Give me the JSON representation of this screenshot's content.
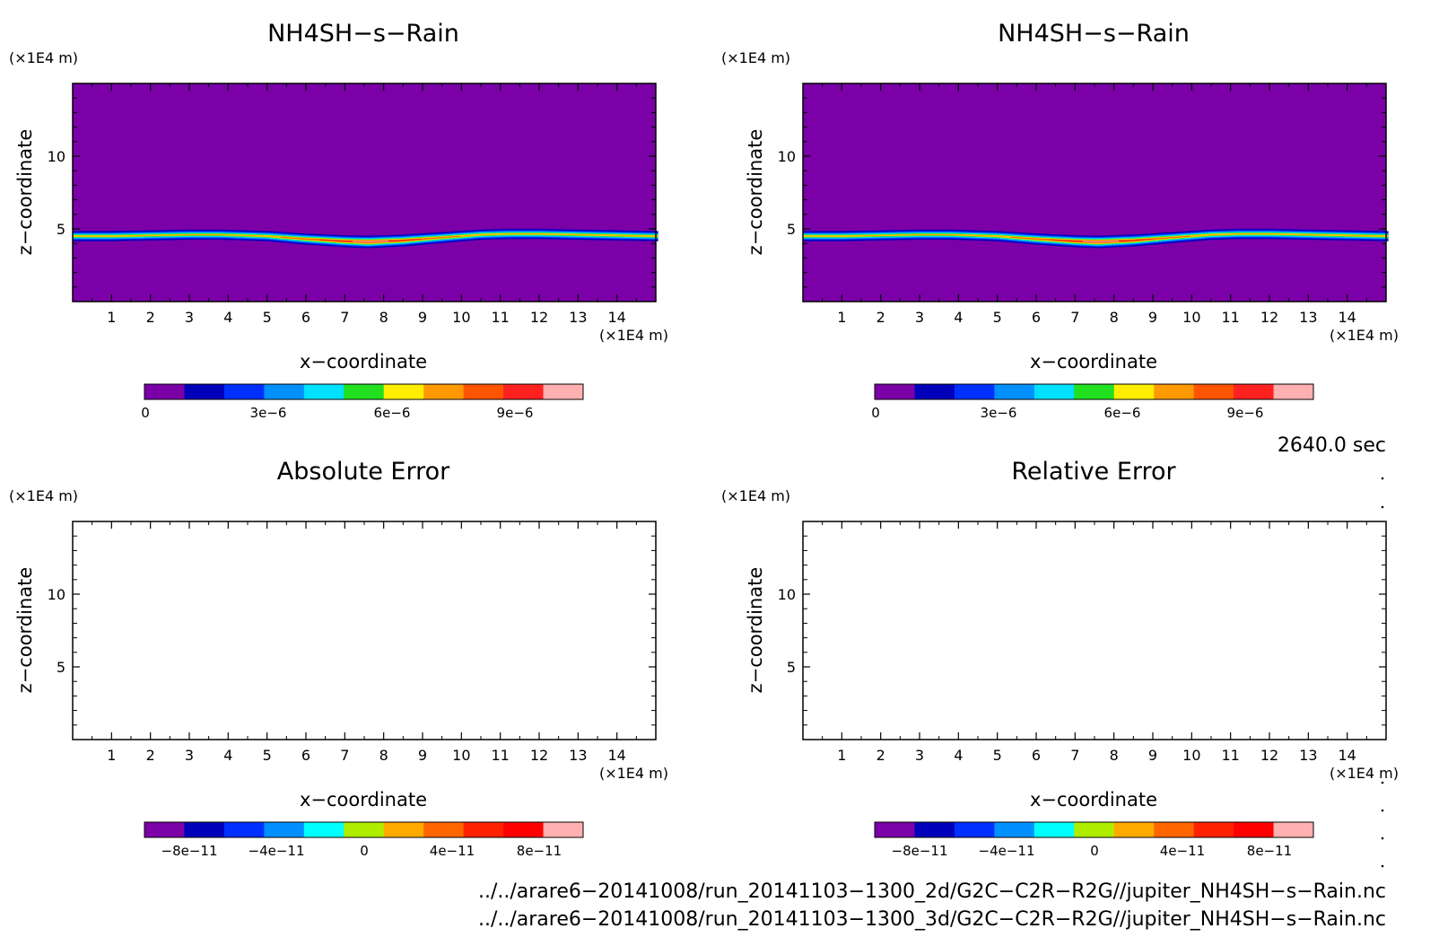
{
  "colors": {
    "background": "#ffffff",
    "field_background": "#7b00a8",
    "palette_concentration": [
      "#7b00a8",
      "#0000bb",
      "#0030ff",
      "#0090ff",
      "#00e0ff",
      "#20e020",
      "#ffee00",
      "#ff9900",
      "#ff5500",
      "#ff2020",
      "#ffb0b0"
    ],
    "palette_error": [
      "#7b00a8",
      "#0000bb",
      "#0030ff",
      "#0090ff",
      "#00ffff",
      "#b0ee00",
      "#ffaa00",
      "#ff6600",
      "#ff2200",
      "#ff0000",
      "#ffb0b0"
    ]
  },
  "panels": [
    {
      "title": "NH4SH−s−Rain",
      "xlabel": "x−coordinate",
      "ylabel": "z−coordinate",
      "xunit": "(×1E4 m)",
      "yunit": "(×1E4 m)",
      "colorbar_labels": [
        "0",
        "3e−6",
        "6e−6",
        "9e−6"
      ]
    },
    {
      "title": "NH4SH−s−Rain",
      "xlabel": "x−coordinate",
      "ylabel": "z−coordinate",
      "xunit": "(×1E4 m)",
      "yunit": "(×1E4 m)",
      "colorbar_labels": [
        "0",
        "3e−6",
        "6e−6",
        "9e−6"
      ]
    },
    {
      "title": "Absolute Error",
      "xlabel": "x−coordinate",
      "ylabel": "z−coordinate",
      "xunit": "(×1E4 m)",
      "yunit": "(×1E4 m)",
      "colorbar_labels": [
        "−8e−11",
        "−4e−11",
        "0",
        "4e−11",
        "8e−11"
      ]
    },
    {
      "title": "Relative Error",
      "xlabel": "x−coordinate",
      "ylabel": "z−coordinate",
      "xunit": "(×1E4 m)",
      "yunit": "(×1E4 m)",
      "colorbar_labels": [
        "−8e−11",
        "−4e−11",
        "0",
        "4e−11",
        "8e−11"
      ]
    }
  ],
  "time_label": "2640.0 sec",
  "footer": {
    "line1": "../../arare6−20141008/run_20141103−1300_2d/G2C−C2R−R2G//jupiter_NH4SH−s−Rain.nc",
    "line2": "../../arare6−20141008/run_20141103−1300_3d/G2C−C2R−R2G//jupiter_NH4SH−s−Rain.nc"
  },
  "chart_data": [
    {
      "type": "heatmap",
      "title": "NH4SH−s−Rain",
      "xlabel": "x−coordinate",
      "ylabel": "z−coordinate",
      "xlim": [
        0,
        15
      ],
      "ylim": [
        0,
        15
      ],
      "x_ticks": [
        1,
        2,
        3,
        4,
        5,
        6,
        7,
        8,
        9,
        10,
        11,
        12,
        13,
        14
      ],
      "y_ticks": [
        5,
        10
      ],
      "colorbar": {
        "min": 0,
        "max": 1.1e-05,
        "levels": 11,
        "labels": [
          "0",
          "3e−6",
          "6e−6",
          "9e−6"
        ],
        "label_values": [
          0,
          3e-06,
          6e-06,
          9e-06
        ]
      },
      "layer": {
        "x": [
          0,
          1,
          2,
          3,
          3.8,
          5,
          6,
          7,
          7.6,
          8.5,
          9.5,
          10.5,
          11.2,
          12,
          13,
          14,
          15
        ],
        "center_z": [
          4.5,
          4.5,
          4.55,
          4.6,
          4.6,
          4.5,
          4.3,
          4.15,
          4.1,
          4.2,
          4.4,
          4.6,
          4.65,
          4.65,
          4.6,
          4.55,
          4.5
        ],
        "half_thickness_z": [
          0.55,
          0.55,
          0.55,
          0.55,
          0.55,
          0.55,
          0.58,
          0.6,
          0.62,
          0.6,
          0.57,
          0.55,
          0.55,
          0.55,
          0.55,
          0.55,
          0.55
        ],
        "peak_value": [
          7.5e-06,
          7.5e-06,
          7.3e-06,
          7.2e-06,
          7.2e-06,
          7.6e-06,
          8.6e-06,
          9.8e-06,
          1.05e-05,
          9.6e-06,
          8.3e-06,
          7.6e-06,
          7.4e-06,
          7.4e-06,
          7.4e-06,
          7.5e-06,
          7.5e-06
        ]
      }
    },
    {
      "type": "heatmap",
      "title": "NH4SH−s−Rain",
      "xlabel": "x−coordinate",
      "ylabel": "z−coordinate",
      "xlim": [
        0,
        15
      ],
      "ylim": [
        0,
        15
      ],
      "x_ticks": [
        1,
        2,
        3,
        4,
        5,
        6,
        7,
        8,
        9,
        10,
        11,
        12,
        13,
        14
      ],
      "y_ticks": [
        5,
        10
      ],
      "colorbar": {
        "min": 0,
        "max": 1.1e-05,
        "levels": 11,
        "labels": [
          "0",
          "3e−6",
          "6e−6",
          "9e−6"
        ],
        "label_values": [
          0,
          3e-06,
          6e-06,
          9e-06
        ]
      },
      "layer": {
        "x": [
          0,
          1,
          2,
          3,
          3.8,
          5,
          6,
          7,
          7.6,
          8.5,
          9.5,
          10.5,
          11.2,
          12,
          13,
          14,
          15
        ],
        "center_z": [
          4.5,
          4.5,
          4.55,
          4.6,
          4.6,
          4.5,
          4.3,
          4.15,
          4.1,
          4.2,
          4.4,
          4.6,
          4.65,
          4.65,
          4.6,
          4.55,
          4.5
        ],
        "half_thickness_z": [
          0.55,
          0.55,
          0.55,
          0.55,
          0.55,
          0.55,
          0.58,
          0.6,
          0.62,
          0.6,
          0.57,
          0.55,
          0.55,
          0.55,
          0.55,
          0.55,
          0.55
        ],
        "peak_value": [
          7.5e-06,
          7.5e-06,
          7.3e-06,
          7.2e-06,
          7.2e-06,
          7.6e-06,
          8.6e-06,
          9.8e-06,
          1.05e-05,
          9.6e-06,
          8.3e-06,
          7.6e-06,
          7.4e-06,
          7.4e-06,
          7.4e-06,
          7.5e-06,
          7.5e-06
        ]
      }
    },
    {
      "type": "heatmap",
      "title": "Absolute Error",
      "xlabel": "x−coordinate",
      "ylabel": "z−coordinate",
      "xlim": [
        0,
        15
      ],
      "ylim": [
        0,
        15
      ],
      "x_ticks": [
        1,
        2,
        3,
        4,
        5,
        6,
        7,
        8,
        9,
        10,
        11,
        12,
        13,
        14
      ],
      "y_ticks": [
        5,
        10
      ],
      "colorbar": {
        "min": -1e-10,
        "max": 1e-10,
        "levels": 10,
        "labels": [
          "−8e−11",
          "−4e−11",
          "0",
          "4e−11",
          "8e−11"
        ],
        "label_values": [
          -8e-11,
          -4e-11,
          0,
          4e-11,
          8e-11
        ]
      },
      "field": "empty"
    },
    {
      "type": "heatmap",
      "title": "Relative Error",
      "xlabel": "x−coordinate",
      "ylabel": "z−coordinate",
      "xlim": [
        0,
        15
      ],
      "ylim": [
        0,
        15
      ],
      "x_ticks": [
        1,
        2,
        3,
        4,
        5,
        6,
        7,
        8,
        9,
        10,
        11,
        12,
        13,
        14
      ],
      "y_ticks": [
        5,
        10
      ],
      "colorbar": {
        "min": -1e-10,
        "max": 1e-10,
        "levels": 10,
        "labels": [
          "−8e−11",
          "−4e−11",
          "0",
          "4e−11",
          "8e−11"
        ],
        "label_values": [
          -8e-11,
          -4e-11,
          0,
          4e-11,
          8e-11
        ]
      },
      "field": "empty"
    }
  ]
}
